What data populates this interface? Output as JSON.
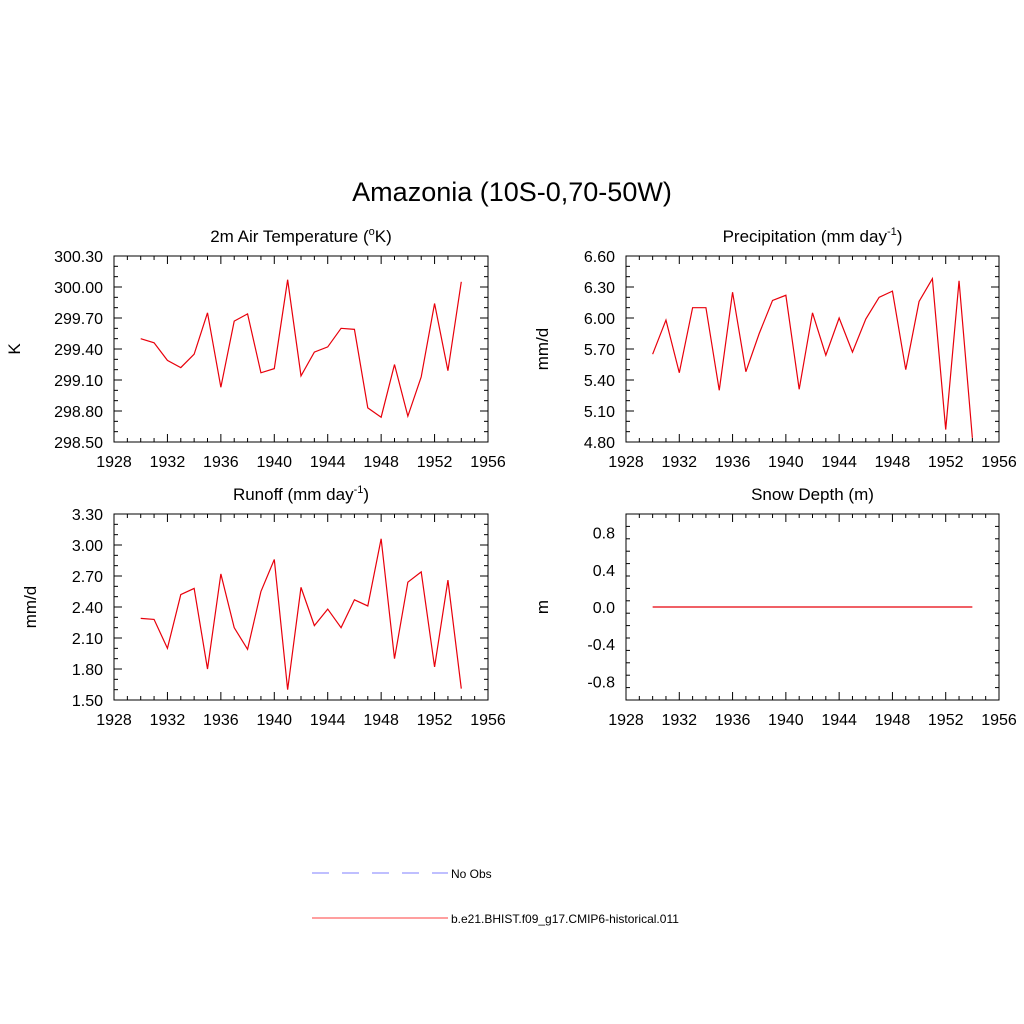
{
  "figure": {
    "title": "Amazonia (10S-0,70-50W)"
  },
  "legend": {
    "entries": [
      {
        "label": "No Obs",
        "color": "#9999ff",
        "dash": true
      },
      {
        "label": "b.e21.BHIST.f09_g17.CMIP6-historical.011",
        "color": "#ff6666",
        "dash": false
      }
    ]
  },
  "chart_data": [
    {
      "type": "line",
      "title": "2m Air Temperature (",
      "title_sup": "o",
      "title_after": "K)",
      "title_sub_sup": "",
      "ylabel": "K",
      "xlim": [
        1928,
        1956
      ],
      "ylim": [
        298.5,
        300.3
      ],
      "yticks": [
        "300.30",
        "300.00",
        "299.70",
        "299.40",
        "299.10",
        "298.80",
        "298.50"
      ],
      "xticks": [
        "1928",
        "1932",
        "1936",
        "1940",
        "1944",
        "1948",
        "1952",
        "1956"
      ],
      "color": "#e8000b",
      "x": [
        1930,
        1931,
        1932,
        1933,
        1934,
        1935,
        1936,
        1937,
        1938,
        1939,
        1940,
        1941,
        1942,
        1943,
        1944,
        1945,
        1946,
        1947,
        1948,
        1949,
        1950,
        1951,
        1952,
        1953,
        1954
      ],
      "y": [
        299.5,
        299.46,
        299.29,
        299.22,
        299.35,
        299.75,
        299.03,
        299.67,
        299.74,
        299.17,
        299.21,
        300.07,
        299.14,
        299.37,
        299.42,
        299.6,
        299.59,
        298.83,
        298.74,
        299.25,
        298.75,
        299.13,
        299.84,
        299.19,
        300.05
      ]
    },
    {
      "type": "line",
      "title": "Precipitation (mm day",
      "title_sup": "-1",
      "title_after": ")",
      "ylabel": "mm/d",
      "xlim": [
        1928,
        1956
      ],
      "ylim": [
        4.8,
        6.6
      ],
      "yticks": [
        "6.60",
        "6.30",
        "6.00",
        "5.70",
        "5.40",
        "5.10",
        "4.80"
      ],
      "xticks": [
        "1928",
        "1932",
        "1936",
        "1940",
        "1944",
        "1948",
        "1952",
        "1956"
      ],
      "color": "#e8000b",
      "x": [
        1930,
        1931,
        1932,
        1933,
        1934,
        1935,
        1936,
        1937,
        1938,
        1939,
        1940,
        1941,
        1942,
        1943,
        1944,
        1945,
        1946,
        1947,
        1948,
        1949,
        1950,
        1951,
        1952,
        1953,
        1954
      ],
      "y": [
        5.65,
        5.98,
        5.47,
        6.1,
        6.1,
        5.3,
        6.25,
        5.48,
        5.85,
        6.17,
        6.22,
        5.31,
        6.05,
        5.64,
        6.0,
        5.67,
        5.99,
        6.2,
        6.26,
        5.5,
        6.16,
        6.38,
        4.92,
        6.36,
        4.84
      ]
    },
    {
      "type": "line",
      "title": "Runoff (mm day",
      "title_sup": "-1",
      "title_after": ")",
      "ylabel": "mm/d",
      "xlim": [
        1928,
        1956
      ],
      "ylim": [
        1.5,
        3.3
      ],
      "yticks": [
        "3.30",
        "3.00",
        "2.70",
        "2.40",
        "2.10",
        "1.80",
        "1.50"
      ],
      "xticks": [
        "1928",
        "1932",
        "1936",
        "1940",
        "1944",
        "1948",
        "1952",
        "1956"
      ],
      "color": "#e8000b",
      "x": [
        1930,
        1931,
        1932,
        1933,
        1934,
        1935,
        1936,
        1937,
        1938,
        1939,
        1940,
        1941,
        1942,
        1943,
        1944,
        1945,
        1946,
        1947,
        1948,
        1949,
        1950,
        1951,
        1952,
        1953,
        1954
      ],
      "y": [
        2.29,
        2.28,
        2.0,
        2.52,
        2.58,
        1.8,
        2.72,
        2.2,
        1.99,
        2.55,
        2.86,
        1.6,
        2.59,
        2.22,
        2.38,
        2.2,
        2.47,
        2.41,
        3.06,
        1.9,
        2.64,
        2.74,
        1.82,
        2.66,
        1.61
      ]
    },
    {
      "type": "line",
      "title": "Snow Depth (m)",
      "title_sup": "",
      "title_after": "",
      "ylabel": "m",
      "xlim": [
        1928,
        1956
      ],
      "ylim": [
        -1.0,
        1.0
      ],
      "yticks": [
        "0.8",
        "0.4",
        "0.0",
        "-0.4",
        "-0.8"
      ],
      "xticks": [
        "1928",
        "1932",
        "1936",
        "1940",
        "1944",
        "1948",
        "1952",
        "1956"
      ],
      "color": "#e8000b",
      "x": [
        1930,
        1954
      ],
      "y": [
        0.0,
        0.0
      ]
    }
  ]
}
